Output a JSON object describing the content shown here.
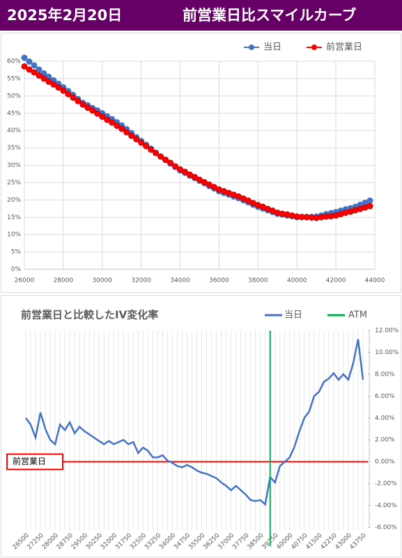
{
  "header": {
    "date": "2025年2月20日",
    "title": "前営業日比スマイルカーブ"
  },
  "chart_data": [
    {
      "type": "line",
      "markers": true,
      "grid": true,
      "legend": "top",
      "x": [
        26000,
        26250,
        26500,
        26750,
        27000,
        27250,
        27500,
        27750,
        28000,
        28250,
        28500,
        28750,
        29000,
        29250,
        29500,
        29750,
        30000,
        30250,
        30500,
        30750,
        31000,
        31250,
        31500,
        31750,
        32000,
        32250,
        32500,
        32750,
        33000,
        33250,
        33500,
        33750,
        34000,
        34250,
        34500,
        34750,
        35000,
        35250,
        35500,
        35750,
        36000,
        36250,
        36500,
        36750,
        37000,
        37250,
        37500,
        37750,
        38000,
        38250,
        38500,
        38750,
        39000,
        39250,
        39500,
        39750,
        40000,
        40250,
        40500,
        40750,
        41000,
        41250,
        41500,
        41750,
        42000,
        42250,
        42500,
        42750,
        43000,
        43250,
        43500,
        43750
      ],
      "series": [
        {
          "name": "当日",
          "color": "#4472c4",
          "values": [
            61,
            59.9,
            58.8,
            57.6,
            56.5,
            55.5,
            54.5,
            53.5,
            52.5,
            51.4,
            50.3,
            49.1,
            48,
            47.3,
            46.5,
            45.8,
            45,
            44.1,
            43.3,
            42.4,
            41.5,
            40.4,
            39.3,
            38.1,
            37,
            35.9,
            34.8,
            33.6,
            32.5,
            31.5,
            30.5,
            29.5,
            28.5,
            27.8,
            27,
            26.3,
            25.5,
            24.8,
            24,
            23.3,
            22.5,
            22,
            21.5,
            21,
            20.5,
            19.9,
            19.3,
            18.6,
            18,
            17.5,
            17,
            16.5,
            16,
            15.8,
            15.5,
            15.3,
            15,
            15,
            15.1,
            15.1,
            15.2,
            15.5,
            15.9,
            16.2,
            16.5,
            16.9,
            17.3,
            17.6,
            18,
            18.6,
            19.2,
            19.8
          ]
        },
        {
          "name": "前営業日",
          "color": "#ff0000",
          "values": [
            58.5,
            57.6,
            56.8,
            55.9,
            55,
            54.1,
            53.3,
            52.4,
            51.5,
            50.5,
            49.5,
            48.5,
            47.5,
            46.6,
            45.8,
            44.9,
            44,
            43.1,
            42.3,
            41.4,
            40.5,
            39.5,
            38.5,
            37.5,
            36.5,
            35.5,
            34.5,
            33.5,
            32.5,
            31.6,
            30.7,
            29.7,
            28.8,
            28.1,
            27.3,
            26.6,
            25.8,
            25.1,
            24.4,
            23.7,
            23,
            22.5,
            22,
            21.5,
            21,
            20.4,
            19.8,
            19.1,
            18.5,
            18,
            17.4,
            16.9,
            16.3,
            16,
            15.8,
            15.5,
            15.2,
            15.1,
            15,
            14.9,
            14.8,
            15,
            15.2,
            15.3,
            15.5,
            15.9,
            16.3,
            16.6,
            17,
            17.4,
            17.8,
            18.2
          ]
        }
      ],
      "xlim": [
        26000,
        44000
      ],
      "xticks": [
        26000,
        28000,
        30000,
        32000,
        34000,
        36000,
        38000,
        40000,
        42000,
        44000
      ],
      "ylim": [
        0,
        60
      ],
      "yticks": [
        {
          "value": 0,
          "label": "0%"
        },
        {
          "value": 5,
          "label": "5%"
        },
        {
          "value": 10,
          "label": "10%"
        },
        {
          "value": 15,
          "label": "15%"
        },
        {
          "value": 20,
          "label": "20%"
        },
        {
          "value": 25,
          "label": "25%"
        },
        {
          "value": 30,
          "label": "30%"
        },
        {
          "value": 35,
          "label": "35%"
        },
        {
          "value": 40,
          "label": "40%"
        },
        {
          "value": 45,
          "label": "45%"
        },
        {
          "value": 50,
          "label": "50%"
        },
        {
          "value": 55,
          "label": "55%"
        },
        {
          "value": 60,
          "label": "60%"
        }
      ]
    },
    {
      "type": "line",
      "markers": false,
      "grid": true,
      "legend": "top",
      "title": "前営業日と比較したIV変化率",
      "x": [
        26500,
        26750,
        27000,
        27250,
        27500,
        27750,
        28000,
        28250,
        28500,
        28750,
        29000,
        29250,
        29500,
        29750,
        30000,
        30250,
        30500,
        30750,
        31000,
        31250,
        31500,
        31750,
        32000,
        32250,
        32500,
        32750,
        33000,
        33250,
        33500,
        33750,
        34000,
        34250,
        34500,
        34750,
        35000,
        35250,
        35500,
        35750,
        36000,
        36250,
        36500,
        36750,
        37000,
        37250,
        37500,
        37750,
        38000,
        38250,
        38500,
        38750,
        39000,
        39250,
        39500,
        39750,
        40000,
        40250,
        40500,
        40750,
        41000,
        41250,
        41500,
        41750,
        42000,
        42250,
        42500,
        42750,
        43000,
        43250,
        43500,
        43750
      ],
      "series": [
        {
          "name": "当日",
          "color": "#4472c4",
          "values": [
            4.0,
            3.4,
            2.2,
            4.5,
            3.0,
            2.0,
            1.6,
            3.4,
            2.9,
            3.6,
            2.6,
            3.2,
            2.8,
            2.5,
            2.2,
            1.9,
            1.6,
            1.9,
            1.6,
            1.8,
            2.0,
            1.6,
            1.8,
            0.8,
            1.3,
            1.0,
            0.4,
            0.4,
            0.6,
            0.1,
            -0.1,
            -0.4,
            -0.5,
            -0.3,
            -0.5,
            -0.8,
            -1.0,
            -1.1,
            -1.3,
            -1.5,
            -1.9,
            -2.2,
            -2.6,
            -2.2,
            -2.6,
            -3.0,
            -3.5,
            -3.6,
            -3.5,
            -3.9,
            -1.4,
            -1.9,
            -0.4,
            0.0,
            0.4,
            1.4,
            2.8,
            4.0,
            4.6,
            6.0,
            6.4,
            7.3,
            7.6,
            8.1,
            7.5,
            8.0,
            7.5,
            9.0,
            11.2,
            7.5
          ]
        }
      ],
      "vline": {
        "name": "ATM",
        "x": 39000,
        "color": "#00b050"
      },
      "reference_line": {
        "label": "前営業日",
        "value": 0,
        "color": "#ff0000"
      },
      "xlim": [
        26500,
        43750
      ],
      "xticks": [
        26500,
        27250,
        28000,
        28750,
        29500,
        30250,
        31000,
        31750,
        32500,
        33250,
        34000,
        34750,
        35500,
        36250,
        37000,
        37750,
        38500,
        39250,
        40000,
        40750,
        41500,
        42250,
        43000,
        43750
      ],
      "ylim": [
        -6,
        12
      ],
      "yticks": [
        {
          "value": -6,
          "label": "-6.00%"
        },
        {
          "value": -4,
          "label": "-4.00%"
        },
        {
          "value": -2,
          "label": "-2.00%"
        },
        {
          "value": 0,
          "label": "0.00%"
        },
        {
          "value": 2,
          "label": "2.00%"
        },
        {
          "value": 4,
          "label": "4.00%"
        },
        {
          "value": 6,
          "label": "6.00%"
        },
        {
          "value": 8,
          "label": "8.00%"
        },
        {
          "value": 10,
          "label": "10.00%"
        },
        {
          "value": 12,
          "label": "12.00%"
        }
      ]
    }
  ]
}
